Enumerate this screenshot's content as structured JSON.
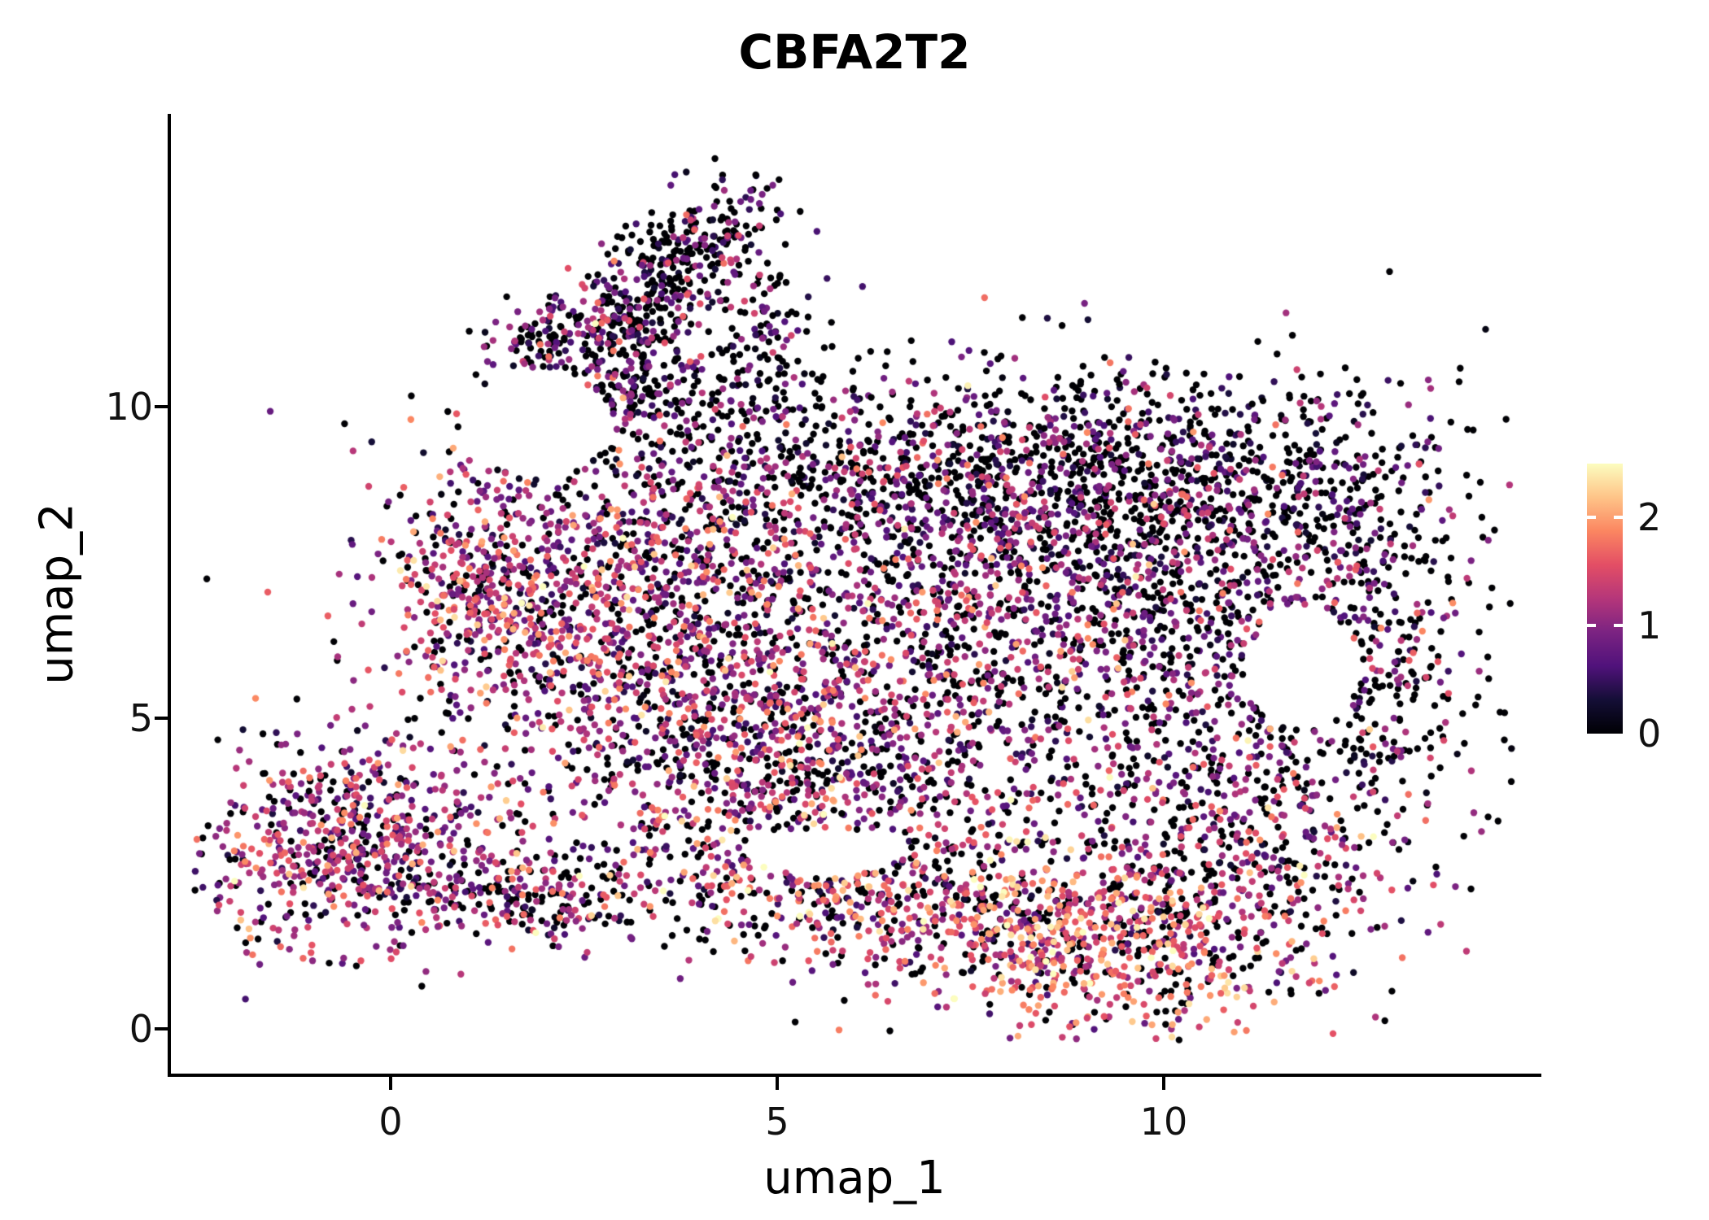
{
  "chart_data": {
    "type": "scatter",
    "subtype": "umap-feature-plot",
    "title": "CBFA2T2",
    "xlabel": "umap_1",
    "ylabel": "umap_2",
    "x_ticks": [
      0,
      5,
      10
    ],
    "y_ticks": [
      0,
      5,
      10
    ],
    "xlim": [
      -2.84,
      14.84
    ],
    "ylim": [
      -0.72,
      14.7
    ],
    "grid": false,
    "legend_position": "right",
    "point_radius_px": 4.2,
    "seed": 42,
    "colorbar": {
      "vmin": 0,
      "vmax": 2.5,
      "ticks": [
        0,
        1,
        2
      ],
      "stops": [
        "#000004",
        "#140e36",
        "#50127b",
        "#7b2382",
        "#b5367a",
        "#e34e65",
        "#fb8661",
        "#fec488",
        "#fcfdbf"
      ]
    },
    "holes": [
      {
        "cx": 11.8,
        "cy": 5.8,
        "rx": 0.72,
        "ry": 1.0
      },
      {
        "cx": 5.6,
        "cy": 2.85,
        "rx": 1.0,
        "ry": 0.38
      },
      {
        "cx": 1.9,
        "cy": 9.7,
        "rx": 1.0,
        "ry": 0.8
      }
    ],
    "clusters": [
      {
        "name": "upper-arm",
        "cx": 3.55,
        "cy": 12.0,
        "sx": 1.05,
        "sy": 0.42,
        "rot": 53,
        "n": 430,
        "zero_frac": 0.52,
        "expr_mean": 0.75,
        "expr_sd": 0.5
      },
      {
        "name": "arm-spur-left",
        "cx": 2.05,
        "cy": 11.25,
        "sx": 0.5,
        "sy": 0.28,
        "rot": 35,
        "n": 100,
        "zero_frac": 0.42,
        "expr_mean": 0.9,
        "expr_sd": 0.5
      },
      {
        "name": "arm-neck",
        "cx": 3.2,
        "cy": 10.15,
        "sx": 0.6,
        "sy": 0.55,
        "rot": 20,
        "n": 140,
        "zero_frac": 0.45,
        "expr_mean": 0.8,
        "expr_sd": 0.5
      },
      {
        "name": "arm-fork-right",
        "cx": 4.75,
        "cy": 11.4,
        "sx": 0.42,
        "sy": 0.75,
        "rot": 0,
        "n": 90,
        "zero_frac": 0.55,
        "expr_mean": 0.7,
        "expr_sd": 0.45
      },
      {
        "name": "arm-scatter",
        "cx": 4.5,
        "cy": 10.4,
        "sx": 1.1,
        "sy": 0.6,
        "rot": 0,
        "n": 80,
        "zero_frac": 0.6,
        "expr_mean": 0.6,
        "expr_sd": 0.45
      },
      {
        "name": "top-band",
        "cx": 6.7,
        "cy": 9.0,
        "sx": 2.6,
        "sy": 0.8,
        "rot": 0,
        "n": 820,
        "zero_frac": 0.5,
        "expr_mean": 0.8,
        "expr_sd": 0.5
      },
      {
        "name": "top-right-band",
        "cx": 10.5,
        "cy": 8.8,
        "sx": 1.9,
        "sy": 0.85,
        "rot": -8,
        "n": 520,
        "zero_frac": 0.55,
        "expr_mean": 0.7,
        "expr_sd": 0.45
      },
      {
        "name": "left-lobe",
        "cx": 2.75,
        "cy": 7.0,
        "sx": 1.5,
        "sy": 1.2,
        "rot": 0,
        "n": 880,
        "zero_frac": 0.22,
        "expr_mean": 1.15,
        "expr_sd": 0.55
      },
      {
        "name": "left-edge",
        "cx": 1.05,
        "cy": 6.9,
        "sx": 0.5,
        "sy": 0.85,
        "rot": 0,
        "n": 180,
        "zero_frac": 0.18,
        "expr_mean": 1.3,
        "expr_sd": 0.5
      },
      {
        "name": "central-mass",
        "cx": 6.3,
        "cy": 6.2,
        "sx": 2.3,
        "sy": 1.7,
        "rot": 0,
        "n": 1050,
        "zero_frac": 0.3,
        "expr_mean": 1.0,
        "expr_sd": 0.55
      },
      {
        "name": "right-dense",
        "cx": 9.4,
        "cy": 6.9,
        "sx": 1.7,
        "sy": 1.5,
        "rot": 0,
        "n": 860,
        "zero_frac": 0.33,
        "expr_mean": 0.95,
        "expr_sd": 0.5
      },
      {
        "name": "right-ring",
        "cx": 12.1,
        "cy": 6.3,
        "sx": 1.05,
        "sy": 1.7,
        "rot": 0,
        "n": 380,
        "zero_frac": 0.58,
        "expr_mean": 0.7,
        "expr_sd": 0.45
      },
      {
        "name": "mid-lower-left",
        "cx": 4.3,
        "cy": 4.6,
        "sx": 1.3,
        "sy": 1.0,
        "rot": 0,
        "n": 430,
        "zero_frac": 0.3,
        "expr_mean": 1.1,
        "expr_sd": 0.55
      },
      {
        "name": "mid-bottom",
        "cx": 5.9,
        "cy": 3.5,
        "sx": 1.6,
        "sy": 0.85,
        "rot": 0,
        "n": 300,
        "zero_frac": 0.35,
        "expr_mean": 1.2,
        "expr_sd": 0.55
      },
      {
        "name": "bottom-band",
        "cx": 6.6,
        "cy": 1.95,
        "sx": 2.3,
        "sy": 0.6,
        "rot": -9,
        "n": 620,
        "zero_frac": 0.3,
        "expr_mean": 1.4,
        "expr_sd": 0.55
      },
      {
        "name": "bottom-right-hot",
        "cx": 9.2,
        "cy": 1.35,
        "sx": 1.35,
        "sy": 0.75,
        "rot": 0,
        "n": 560,
        "zero_frac": 0.25,
        "expr_mean": 1.6,
        "expr_sd": 0.5
      },
      {
        "name": "right-lower",
        "cx": 11.2,
        "cy": 3.3,
        "sx": 1.25,
        "sy": 1.05,
        "rot": 20,
        "n": 420,
        "zero_frac": 0.38,
        "expr_mean": 1.15,
        "expr_sd": 0.55
      },
      {
        "name": "lower-left-cluster",
        "cx": -0.6,
        "cy": 2.95,
        "sx": 1.0,
        "sy": 0.8,
        "rot": 10,
        "n": 640,
        "zero_frac": 0.22,
        "expr_mean": 1.1,
        "expr_sd": 0.5
      },
      {
        "name": "lower-left-tail",
        "cx": 1.35,
        "cy": 2.15,
        "sx": 0.65,
        "sy": 0.4,
        "rot": -15,
        "n": 130,
        "zero_frac": 0.3,
        "expr_mean": 1.15,
        "expr_sd": 0.5
      },
      {
        "name": "bridge-dots",
        "cx": 2.3,
        "cy": 1.95,
        "sx": 0.45,
        "sy": 0.3,
        "rot": 0,
        "n": 60,
        "zero_frac": 0.4,
        "expr_mean": 1.0,
        "expr_sd": 0.5
      },
      {
        "name": "noise-halo",
        "cx": 7.0,
        "cy": 6.0,
        "sx": 4.2,
        "sy": 2.9,
        "rot": 0,
        "n": 380,
        "zero_frac": 0.5,
        "expr_mean": 0.8,
        "expr_sd": 0.5,
        "clip": [
          0.4,
          13.6,
          0.4,
          10.4
        ]
      }
    ]
  }
}
